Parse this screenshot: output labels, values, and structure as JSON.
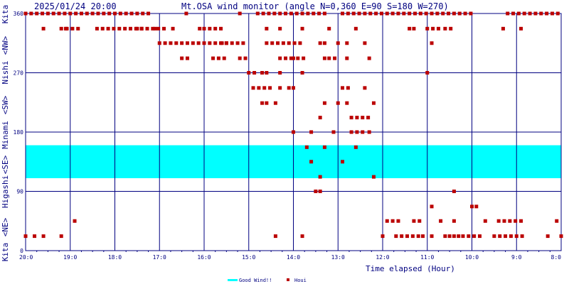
{
  "header": {
    "timestamp": "2025/01/24 20:00",
    "title": "Mt.OSA wind monitor (angle N=0,360 E=90 S=180 W=270)"
  },
  "left_axis": [
    {
      "text": "Kita",
      "dir": "N"
    },
    {
      "text": "<NW>"
    },
    {
      "text": "Nishi",
      "dir": "W"
    },
    {
      "text": "<SW>"
    },
    {
      "text": "Minami",
      "dir": "S"
    },
    {
      "text": "<SE>"
    },
    {
      "text": "Higashi",
      "dir": "E"
    },
    {
      "text": "<NE>"
    },
    {
      "text": "Kita",
      "dir": "N"
    }
  ],
  "legend": {
    "good_wind": "Good Wind!!",
    "houi": "Houi"
  },
  "chart_data": {
    "type": "scatter",
    "title": "Mt.OSA wind monitor (angle N=0,360 E=90 S=180 W=270)",
    "xlabel": "Time elapsed (Hour)",
    "ylabel": "",
    "x_reversed": true,
    "xlim": [
      8,
      20
    ],
    "ylim": [
      0,
      360
    ],
    "x_ticks": [
      {
        "v": 20,
        "label": "20:0"
      },
      {
        "v": 19,
        "label": "19:0"
      },
      {
        "v": 18,
        "label": "18:0"
      },
      {
        "v": 17,
        "label": "17:0"
      },
      {
        "v": 16,
        "label": "16:0"
      },
      {
        "v": 15,
        "label": "15:0"
      },
      {
        "v": 14,
        "label": "14:0"
      },
      {
        "v": 13,
        "label": "13:0"
      },
      {
        "v": 12,
        "label": "12:0"
      },
      {
        "v": 11,
        "label": "11:0"
      },
      {
        "v": 10,
        "label": "10:0"
      },
      {
        "v": 9,
        "label": "9:0"
      },
      {
        "v": 8,
        "label": "8:0"
      }
    ],
    "y_ticks": [
      {
        "v": 360,
        "label": "360"
      },
      {
        "v": 270,
        "label": "270"
      },
      {
        "v": 180,
        "label": "180"
      },
      {
        "v": 90,
        "label": "90"
      },
      {
        "v": 0,
        "label": "0"
      }
    ],
    "good_wind_band": [
      110,
      160
    ],
    "colors": {
      "band": "#00ffff",
      "points": "#bb0000",
      "grid": "#000080",
      "text": "#000080"
    },
    "series": [
      {
        "name": "Houi",
        "segments": [
          {
            "y": 360,
            "from": 20.0,
            "to": 17.2,
            "step": 0.125
          },
          {
            "y": 360,
            "from": 14.8,
            "to": 13.2,
            "step": 0.125
          },
          {
            "y": 360,
            "from": 12.9,
            "to": 10.0,
            "step": 0.125
          },
          {
            "y": 360,
            "from": 9.2,
            "to": 8.0,
            "step": 0.125
          },
          {
            "y": 337,
            "from": 18.4,
            "to": 16.8,
            "step": 0.125
          },
          {
            "y": 337,
            "from": 19.2,
            "to": 18.8,
            "step": 0.125
          },
          {
            "y": 337,
            "from": 19.6,
            "to": 19.5,
            "step": 0.125
          },
          {
            "y": 337,
            "from": 16.0,
            "to": 15.6,
            "step": 0.125
          },
          {
            "y": 337,
            "from": 11.0,
            "to": 10.7,
            "step": 0.125
          },
          {
            "y": 337,
            "from": 10.6,
            "to": 10.4,
            "step": 0.125
          },
          {
            "y": 315,
            "from": 17.0,
            "to": 15.1,
            "step": 0.125
          },
          {
            "y": 315,
            "from": 14.6,
            "to": 13.8,
            "step": 0.125
          },
          {
            "y": 315,
            "from": 13.0,
            "to": 12.9,
            "step": 0.125
          },
          {
            "y": 292,
            "from": 16.5,
            "to": 16.3,
            "step": 0.125
          },
          {
            "y": 292,
            "from": 15.8,
            "to": 15.5,
            "step": 0.125
          },
          {
            "y": 292,
            "from": 15.2,
            "to": 15.0,
            "step": 0.125
          },
          {
            "y": 292,
            "from": 14.3,
            "to": 14.0,
            "step": 0.125
          },
          {
            "y": 292,
            "from": 13.9,
            "to": 13.7,
            "step": 0.125
          },
          {
            "y": 292,
            "from": 13.2,
            "to": 13.0,
            "step": 0.125
          },
          {
            "y": 270,
            "from": 15.0,
            "to": 14.8,
            "step": 0.125
          },
          {
            "y": 270,
            "from": 14.3,
            "to": 14.2,
            "step": 0.125
          },
          {
            "y": 270,
            "from": 13.8,
            "to": 13.7,
            "step": 0.125
          },
          {
            "y": 247,
            "from": 14.9,
            "to": 14.5,
            "step": 0.125
          },
          {
            "y": 247,
            "from": 12.9,
            "to": 12.7,
            "step": 0.125
          },
          {
            "y": 224,
            "from": 14.6,
            "to": 14.5,
            "step": 0.125
          },
          {
            "y": 202,
            "from": 12.7,
            "to": 12.3,
            "step": 0.125
          },
          {
            "y": 180,
            "from": 12.7,
            "to": 12.4,
            "step": 0.125
          },
          {
            "y": 157,
            "from": 13.7,
            "to": 13.6,
            "step": 0.125
          },
          {
            "y": 157,
            "from": 13.3,
            "to": 13.2,
            "step": 0.125
          },
          {
            "y": 157,
            "from": 12.6,
            "to": 12.5,
            "step": 0.125
          },
          {
            "y": 22,
            "from": 12.0,
            "to": 11.9,
            "step": 0.125
          },
          {
            "y": 22,
            "from": 11.7,
            "to": 11.2,
            "step": 0.125
          },
          {
            "y": 22,
            "from": 10.2,
            "to": 9.8,
            "step": 0.125
          },
          {
            "y": 22,
            "from": 9.5,
            "to": 8.8,
            "step": 0.125
          },
          {
            "y": 45,
            "from": 11.9,
            "to": 11.6,
            "step": 0.125
          },
          {
            "y": 45,
            "from": 11.3,
            "to": 11.1,
            "step": 0.125
          },
          {
            "y": 45,
            "from": 9.7,
            "to": 9.6,
            "step": 0.125
          },
          {
            "y": 45,
            "from": 9.4,
            "to": 8.9,
            "step": 0.125
          }
        ],
        "points": [
          [
            19.1,
            337
          ],
          [
            17.5,
            337
          ],
          [
            17.4,
            337
          ],
          [
            17.1,
            337
          ],
          [
            16.7,
            337
          ],
          [
            16.1,
            337
          ],
          [
            14.6,
            337
          ],
          [
            14.3,
            337
          ],
          [
            13.8,
            337
          ],
          [
            13.2,
            337
          ],
          [
            12.6,
            337
          ],
          [
            11.4,
            337
          ],
          [
            11.3,
            337
          ],
          [
            9.3,
            337
          ],
          [
            8.9,
            337
          ],
          [
            16.4,
            360
          ],
          [
            15.2,
            360
          ],
          [
            15.6,
            315
          ],
          [
            15.5,
            315
          ],
          [
            13.4,
            315
          ],
          [
            13.3,
            315
          ],
          [
            12.8,
            315
          ],
          [
            12.4,
            315
          ],
          [
            10.9,
            315
          ],
          [
            14.0,
            292
          ],
          [
            13.3,
            292
          ],
          [
            12.8,
            292
          ],
          [
            12.3,
            292
          ],
          [
            14.7,
            270
          ],
          [
            14.6,
            270
          ],
          [
            11.0,
            270
          ],
          [
            14.3,
            247
          ],
          [
            14.1,
            247
          ],
          [
            14.0,
            247
          ],
          [
            12.4,
            247
          ],
          [
            14.7,
            224
          ],
          [
            14.4,
            224
          ],
          [
            13.3,
            224
          ],
          [
            13.0,
            224
          ],
          [
            12.8,
            224
          ],
          [
            12.2,
            224
          ],
          [
            13.4,
            202
          ],
          [
            14.0,
            180
          ],
          [
            13.6,
            180
          ],
          [
            13.1,
            180
          ],
          [
            12.3,
            180
          ],
          [
            13.6,
            135
          ],
          [
            12.9,
            135
          ],
          [
            13.4,
            112
          ],
          [
            12.2,
            112
          ],
          [
            13.5,
            90
          ],
          [
            13.4,
            90
          ],
          [
            10.4,
            90
          ],
          [
            18.9,
            45
          ],
          [
            10.7,
            45
          ],
          [
            10.4,
            45
          ],
          [
            8.1,
            45
          ],
          [
            10.9,
            67
          ],
          [
            10.0,
            67
          ],
          [
            9.9,
            67
          ],
          [
            20.0,
            22
          ],
          [
            19.8,
            22
          ],
          [
            19.6,
            22
          ],
          [
            19.2,
            22
          ],
          [
            14.4,
            22
          ],
          [
            13.8,
            22
          ],
          [
            11.1,
            22
          ],
          [
            10.9,
            22
          ],
          [
            10.6,
            22
          ],
          [
            10.5,
            22
          ],
          [
            10.4,
            22
          ],
          [
            10.3,
            22
          ],
          [
            8.3,
            22
          ],
          [
            8.0,
            22
          ]
        ]
      }
    ]
  }
}
